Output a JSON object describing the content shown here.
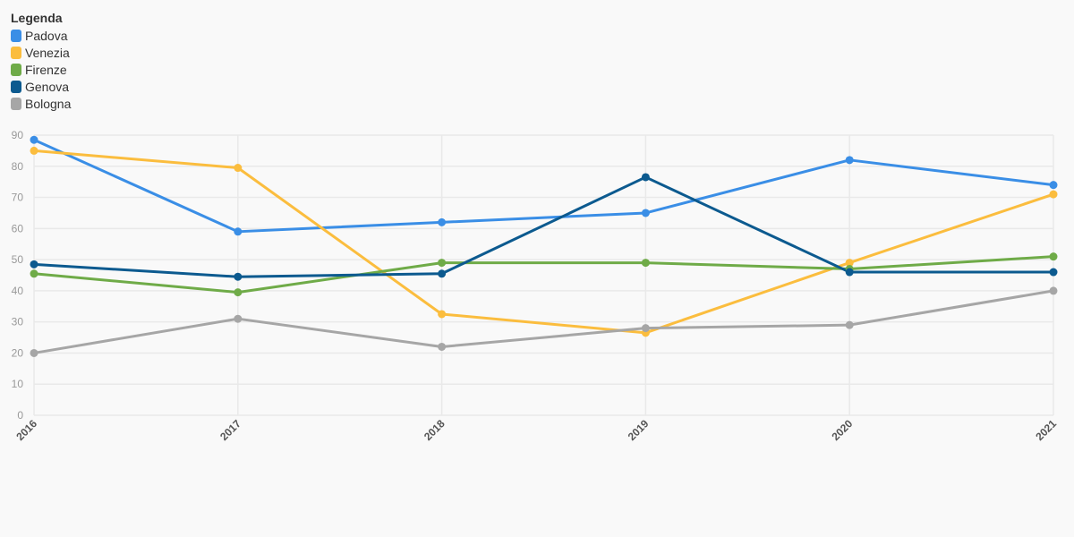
{
  "legend": {
    "title": "Legenda"
  },
  "chart_data": {
    "type": "line",
    "x": [
      "2016",
      "2017",
      "2018",
      "2019",
      "2020",
      "2021"
    ],
    "ylim": [
      0,
      90
    ],
    "yticks": [
      0,
      10,
      20,
      30,
      40,
      50,
      60,
      70,
      80,
      90
    ],
    "grid": true,
    "legend_position": "top-left",
    "series": [
      {
        "name": "Padova",
        "color": "#3a8ee6",
        "values": [
          88.5,
          59,
          62,
          65,
          82,
          74
        ]
      },
      {
        "name": "Venezia",
        "color": "#fbbd3e",
        "values": [
          85,
          79.5,
          32.5,
          26.5,
          49,
          71
        ]
      },
      {
        "name": "Firenze",
        "color": "#6fab48",
        "values": [
          45.5,
          39.5,
          49,
          49,
          47,
          51
        ]
      },
      {
        "name": "Genova",
        "color": "#0c5a8f",
        "values": [
          48.5,
          44.5,
          45.5,
          76.5,
          46,
          46
        ]
      },
      {
        "name": "Bologna",
        "color": "#a6a6a6",
        "values": [
          20,
          31,
          22,
          28,
          29,
          40
        ]
      }
    ]
  }
}
